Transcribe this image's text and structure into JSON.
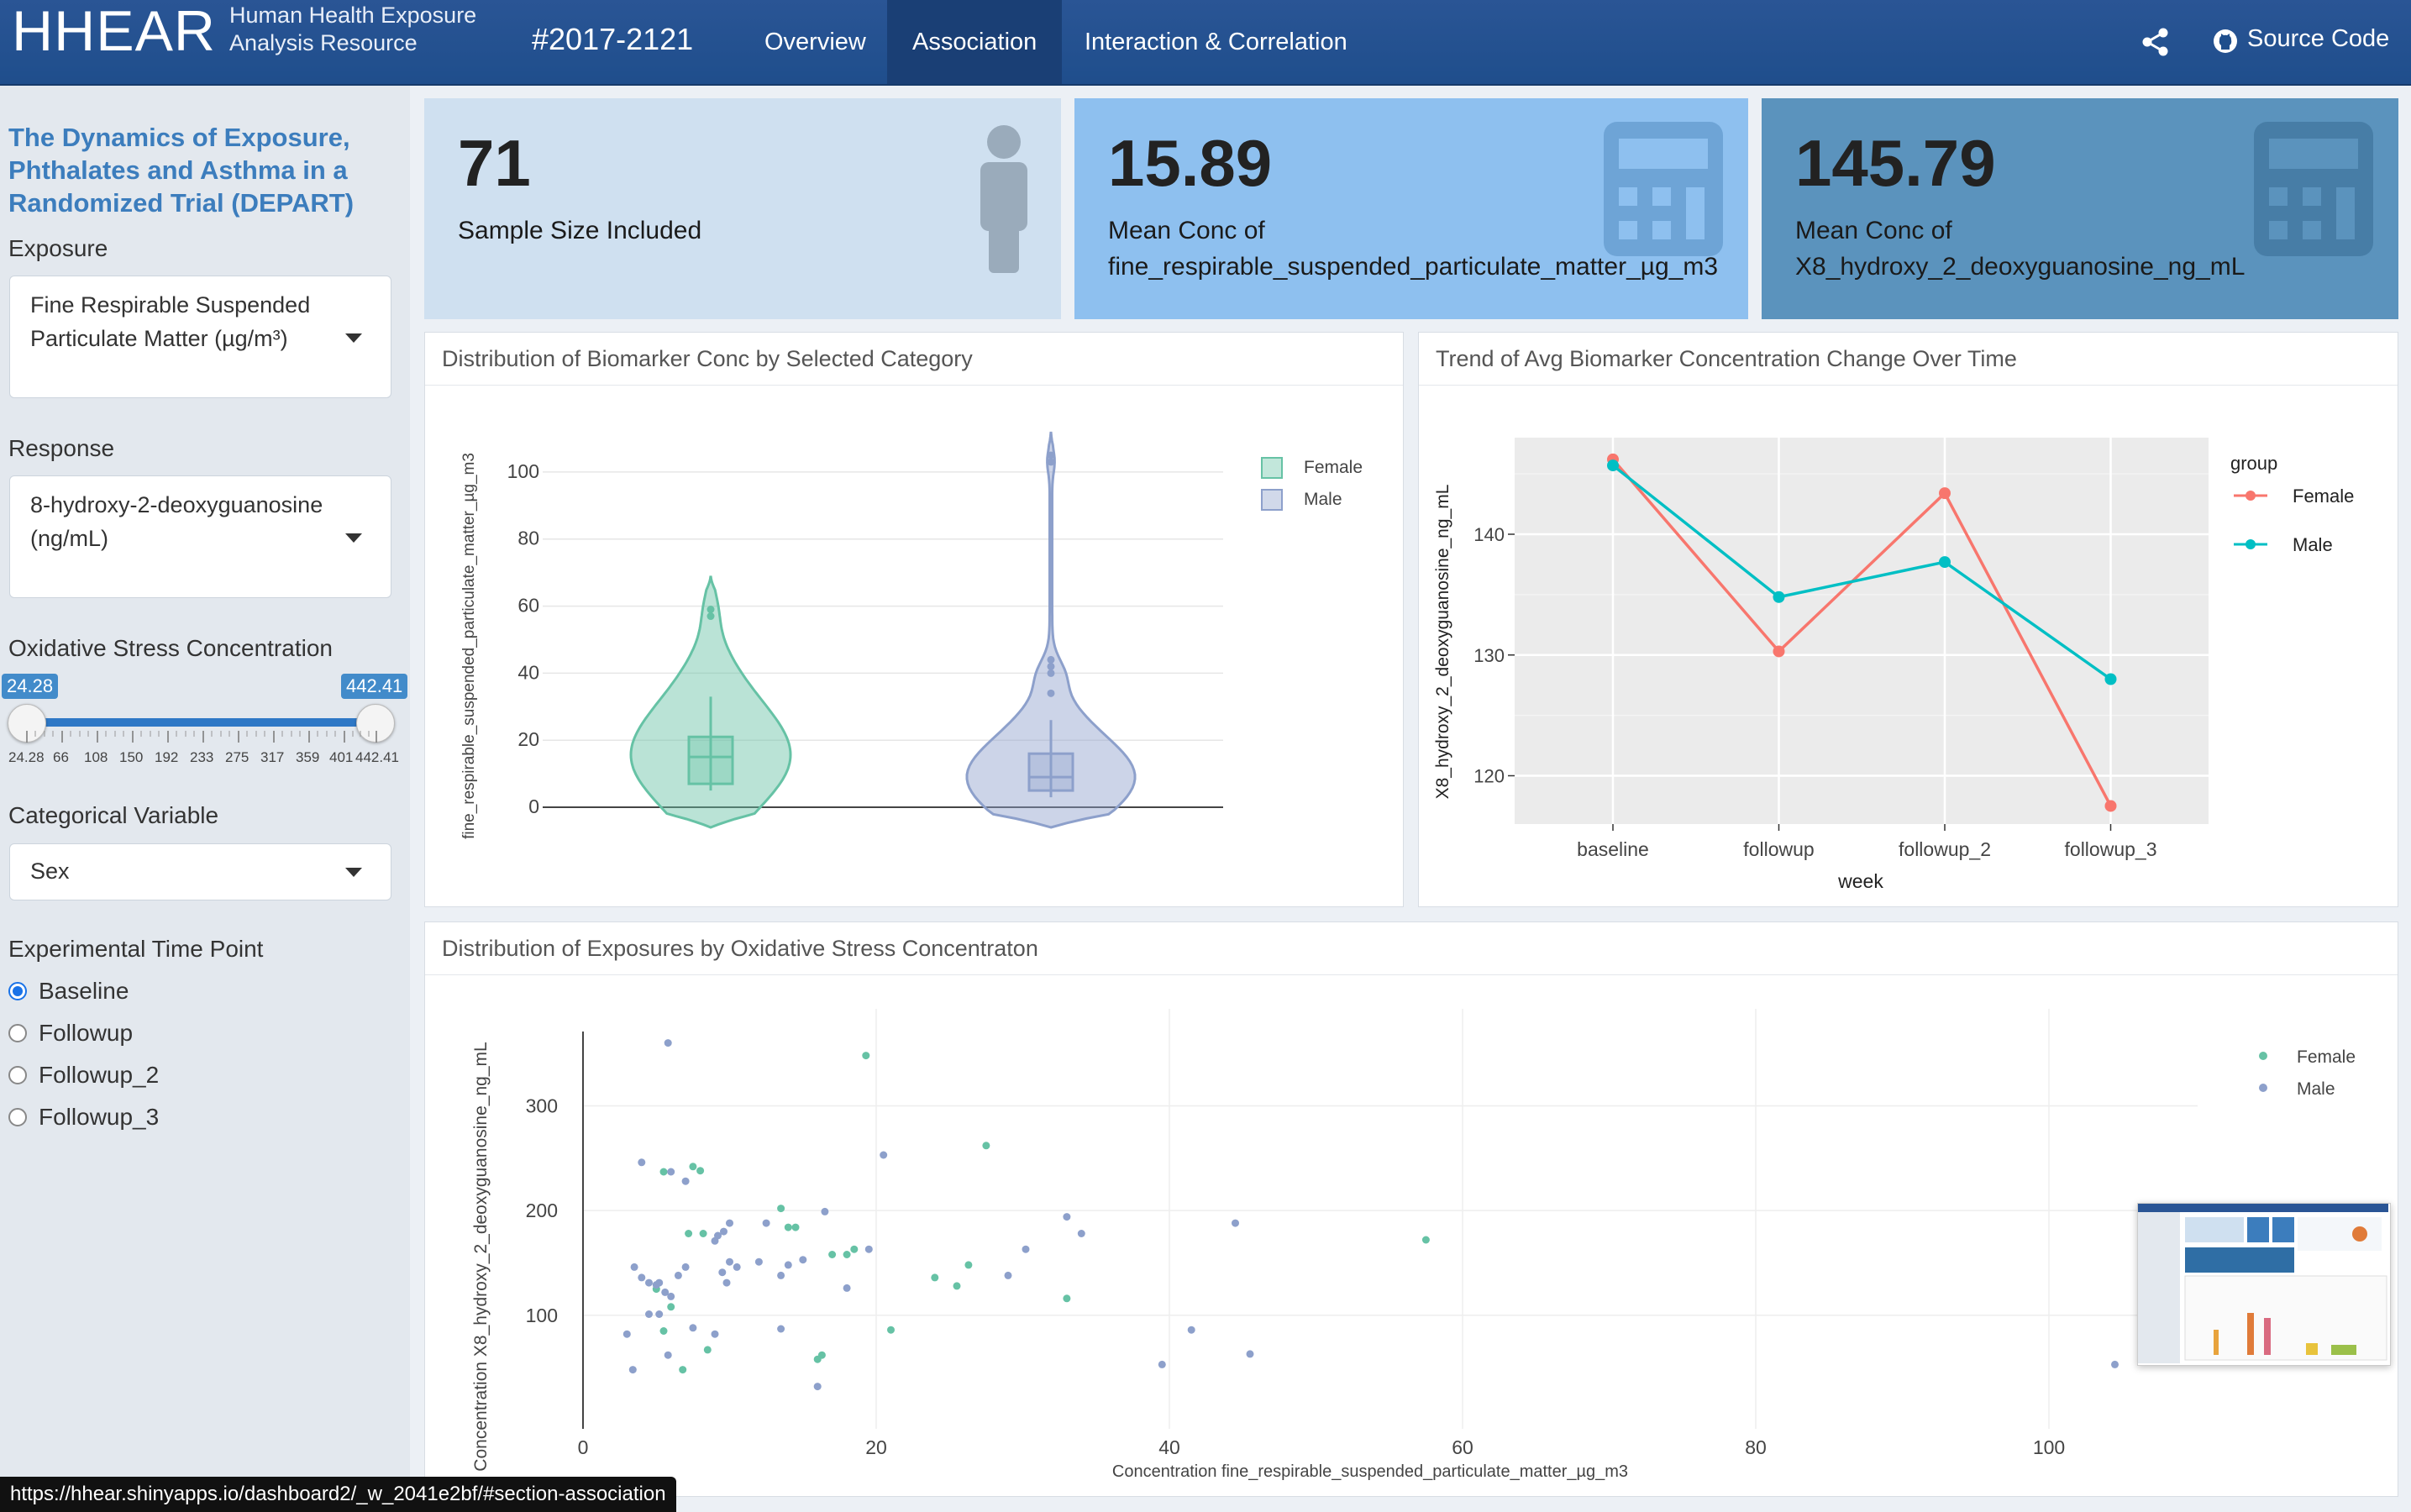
{
  "navbar": {
    "brand": "HHEAR",
    "brand_sub_1": "Human Health Exposure",
    "brand_sub_2": "Analysis Resource",
    "study_id": "#2017-2121",
    "tabs": [
      {
        "label": "Overview"
      },
      {
        "label": "Association",
        "active": true
      },
      {
        "label": "Interaction & Correlation"
      }
    ],
    "share_icon": "share-icon",
    "github_icon": "github-icon",
    "source_code": "Source Code"
  },
  "sidebar": {
    "title": "The Dynamics of Exposure, Phthalates and Asthma in a Randomized Trial (DEPART)",
    "exposure_label": "Exposure",
    "exposure_value": "Fine Respirable Suspended Particulate Matter (µg/m³)",
    "response_label": "Response",
    "response_value": "8-hydroxy-2-deoxyguanosine (ng/mL)",
    "oxidative_label": "Oxidative Stress Concentration",
    "slider": {
      "min_label": "24.28",
      "max_label": "442.41",
      "ticks": [
        "24.28",
        "66",
        "108",
        "150",
        "192",
        "233",
        "275",
        "317",
        "359",
        "401",
        "442.41"
      ]
    },
    "categorical_label": "Categorical Variable",
    "categorical_value": "Sex",
    "timepoint_label": "Experimental Time Point",
    "timepoints": [
      {
        "label": "Baseline",
        "checked": true
      },
      {
        "label": "Followup",
        "checked": false
      },
      {
        "label": "Followup_2",
        "checked": false
      },
      {
        "label": "Followup_3",
        "checked": false
      }
    ]
  },
  "value_boxes": [
    {
      "value": "71",
      "line1": "Sample Size Included",
      "line2": "",
      "icon": "person-icon",
      "color": "#cfe0f0"
    },
    {
      "value": "15.89",
      "line1": "Mean Conc of",
      "line2": "fine_respirable_suspended_particulate_matter_µg_m3",
      "icon": "calculator-icon",
      "color": "#8ec0ef"
    },
    {
      "value": "145.79",
      "line1": "Mean Conc of",
      "line2": "X8_hydroxy_2_deoxyguanosine_ng_mL",
      "icon": "calculator-icon",
      "color": "#5b93bd"
    }
  ],
  "panels": {
    "violin_title": "Distribution of Biomarker Conc by Selected Category",
    "trend_title": "Trend of Avg Biomarker Concentration Change Over Time",
    "scatter_title": "Distribution of Exposures by Oxidative Stress Concentraton"
  },
  "chart_data": [
    {
      "type": "violin",
      "ylabel": "fine_respirable_suspended_particulate_matter_µg_m3",
      "ylim": [
        -7,
        112
      ],
      "yticks": [
        0,
        20,
        40,
        60,
        80,
        100
      ],
      "legend": [
        "Female",
        "Male"
      ],
      "colors": {
        "Female": "#66c2a5",
        "Male": "#8da0cb"
      },
      "series": [
        {
          "name": "Female",
          "min": -6,
          "max": 69,
          "q1": 7,
          "median": 15,
          "q3": 21,
          "whisker_low": 5,
          "whisker_high": 33,
          "outliers": [
            57,
            59
          ]
        },
        {
          "name": "Male",
          "min": -6,
          "max": 112,
          "q1": 5,
          "median": 9,
          "q3": 16,
          "whisker_low": 3,
          "whisker_high": 26,
          "outliers": [
            34,
            40,
            42,
            44,
            103,
            105
          ]
        }
      ]
    },
    {
      "type": "line",
      "xlabel": "week",
      "ylabel": "X8_hydroxy_2_deoxyguanosine_ng_mL",
      "categories": [
        "baseline",
        "followup",
        "followup_2",
        "followup_3"
      ],
      "ylim": [
        116,
        148
      ],
      "yticks": [
        120,
        130,
        140
      ],
      "legend_title": "group",
      "series": [
        {
          "name": "Female",
          "color": "#f8766d",
          "values": [
            146.2,
            130.3,
            143.4,
            117.5
          ]
        },
        {
          "name": "Male",
          "color": "#00bfc4",
          "values": [
            145.7,
            134.8,
            137.7,
            128.0
          ]
        }
      ]
    },
    {
      "type": "scatter",
      "xlabel": "Concentration fine_respirable_suspended_particulate_matter_µg_m3",
      "ylabel": "Concentration X8_hydroxy_2_deoxyguanosine_ng_mL",
      "xlim": [
        -1,
        110
      ],
      "ylim": [
        10,
        395
      ],
      "xticks": [
        0,
        20,
        40,
        60,
        80,
        100
      ],
      "yticks": [
        100,
        200,
        300
      ],
      "legend": [
        "Female",
        "Male"
      ],
      "colors": {
        "Female": "#66c2a5",
        "Male": "#8da0cb"
      },
      "series": [
        {
          "name": "Female",
          "points": [
            [
              19.3,
              348
            ],
            [
              27.5,
              262
            ],
            [
              57.5,
              172
            ],
            [
              13.5,
              202
            ],
            [
              14,
              184
            ],
            [
              14.5,
              184
            ],
            [
              17,
              158
            ],
            [
              18,
              158
            ],
            [
              18.5,
              163
            ],
            [
              7.5,
              242
            ],
            [
              5.5,
              237
            ],
            [
              7.2,
              178
            ],
            [
              8.2,
              178
            ],
            [
              5,
              125
            ],
            [
              6,
              108
            ],
            [
              5.5,
              85
            ],
            [
              6.8,
              48
            ],
            [
              8.5,
              67
            ],
            [
              16,
              58
            ],
            [
              16.3,
              62
            ],
            [
              21,
              86
            ],
            [
              24,
              136
            ],
            [
              25.5,
              128
            ],
            [
              26.3,
              148
            ],
            [
              33,
              116
            ],
            [
              8,
              238
            ]
          ]
        },
        {
          "name": "Male",
          "points": [
            [
              5.8,
              360
            ],
            [
              4,
              246
            ],
            [
              6,
              237
            ],
            [
              7,
              228
            ],
            [
              20.5,
              253
            ],
            [
              3.5,
              146
            ],
            [
              4,
              136
            ],
            [
              4.5,
              131
            ],
            [
              5,
              129
            ],
            [
              5.2,
              131
            ],
            [
              5.6,
              122
            ],
            [
              6,
              118
            ],
            [
              6.5,
              138
            ],
            [
              7,
              146
            ],
            [
              9,
              171
            ],
            [
              9.2,
              176
            ],
            [
              9.6,
              180
            ],
            [
              10,
              188
            ],
            [
              9.5,
              141
            ],
            [
              10,
              151
            ],
            [
              10.5,
              146
            ],
            [
              9.8,
              131
            ],
            [
              12.5,
              188
            ],
            [
              13.5,
              138
            ],
            [
              14,
              148
            ],
            [
              15,
              153
            ],
            [
              16.5,
              199
            ],
            [
              18,
              126
            ],
            [
              19.5,
              163
            ],
            [
              12,
              151
            ],
            [
              4.5,
              101
            ],
            [
              5.2,
              101
            ],
            [
              3,
              82
            ],
            [
              3.4,
              48
            ],
            [
              5.8,
              62
            ],
            [
              7.5,
              88
            ],
            [
              9,
              82
            ],
            [
              13.5,
              87
            ],
            [
              16,
              32
            ],
            [
              29,
              138
            ],
            [
              30.2,
              163
            ],
            [
              33,
              194
            ],
            [
              34,
              178
            ],
            [
              39.5,
              53
            ],
            [
              41.5,
              86
            ],
            [
              44.5,
              188
            ],
            [
              45.5,
              63
            ],
            [
              104.5,
              53
            ]
          ]
        }
      ]
    }
  ],
  "status_url": "https://hhear.shinyapps.io/dashboard2/_w_2041e2bf/#section-association"
}
